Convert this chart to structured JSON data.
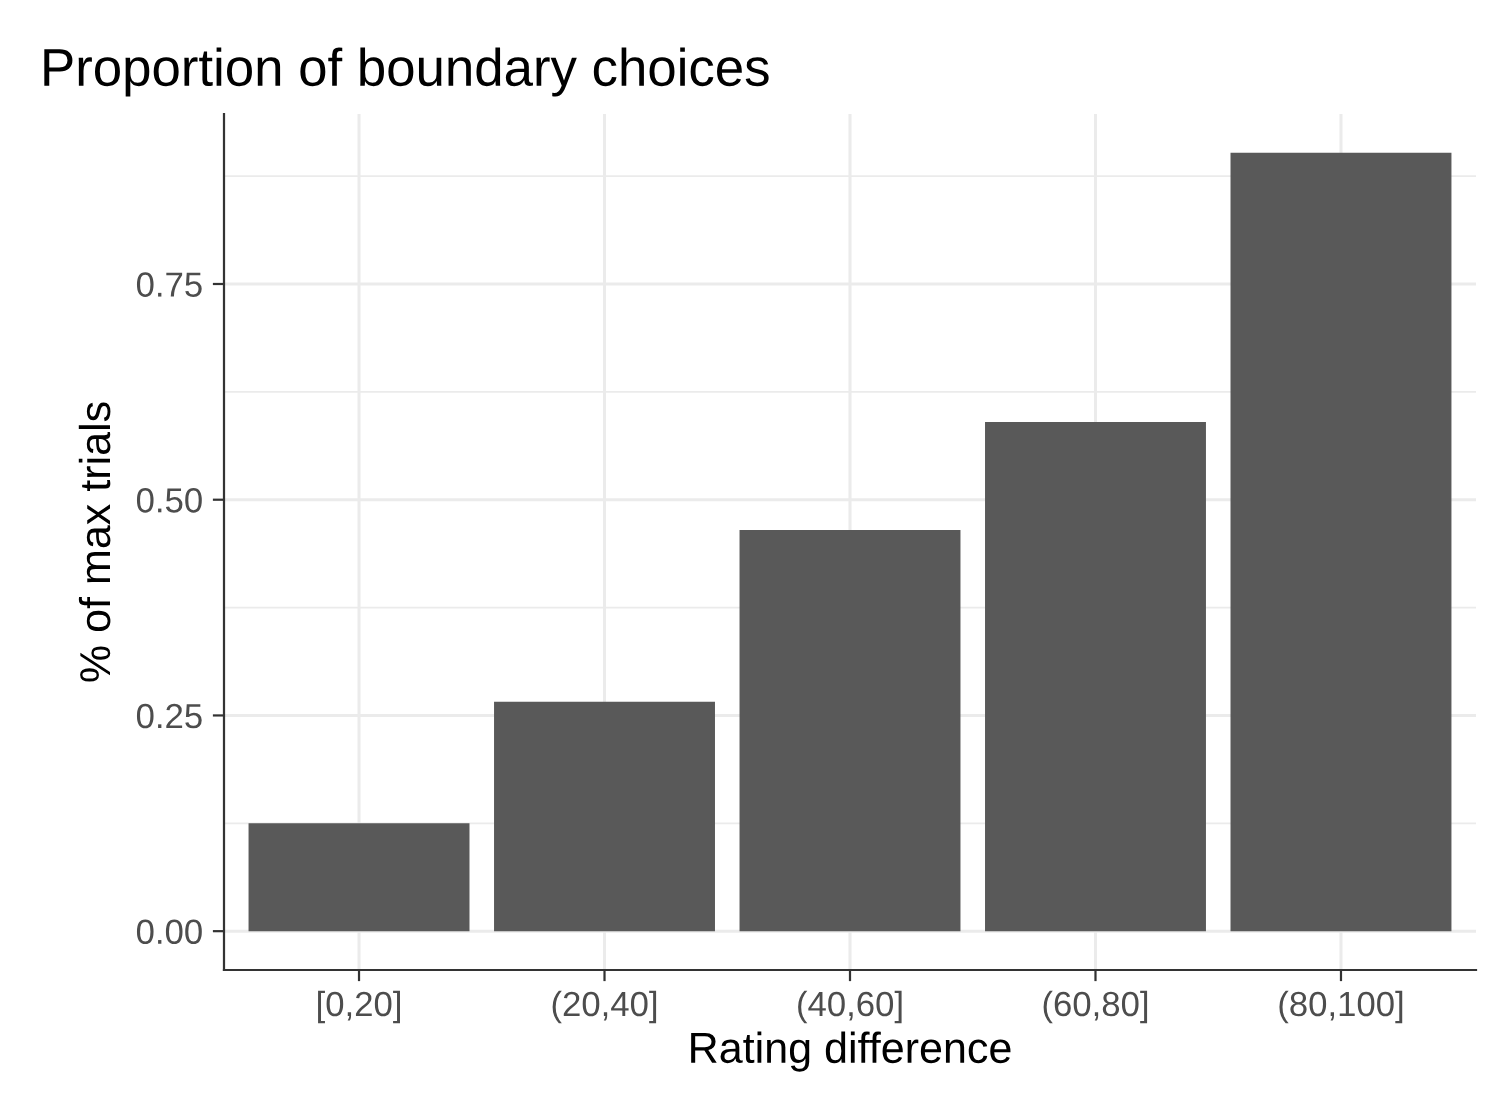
{
  "chart_data": {
    "type": "bar",
    "title": "Proportion of boundary choices",
    "xlabel": "Rating difference",
    "ylabel": "% of max trials",
    "categories": [
      "[0,20]",
      "(20,40]",
      "(40,60]",
      "(60,80]",
      "(80,100]"
    ],
    "values": [
      0.125,
      0.266,
      0.465,
      0.59,
      0.902
    ],
    "color": "#595959",
    "ylim": [
      -0.045,
      0.947
    ],
    "yticks": [
      {
        "value": 0,
        "label": "0.00"
      },
      {
        "value": 0.25,
        "label": "0.25"
      },
      {
        "value": 0.5,
        "label": "0.50"
      },
      {
        "value": 0.75,
        "label": "0.75"
      }
    ],
    "grid": true
  }
}
